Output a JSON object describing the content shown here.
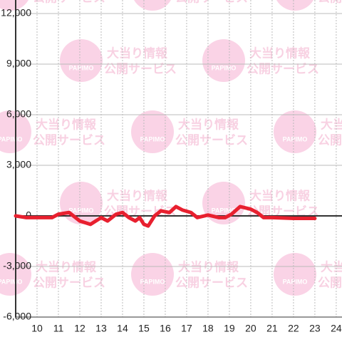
{
  "chart_data": {
    "type": "line",
    "watermark": {
      "title": "大当り情報",
      "subtitle": "公開サービス",
      "logo": "PAPIMO"
    },
    "x": [
      9,
      9.5,
      10,
      10.7,
      11,
      11.5,
      12,
      12.5,
      13,
      13.3,
      13.7,
      14,
      14.3,
      14.6,
      14.8,
      15,
      15.2,
      15.5,
      15.8,
      16.2,
      16.5,
      16.8,
      17.2,
      17.5,
      18,
      18.5,
      18.8,
      19.1,
      19.5,
      20,
      20.3,
      20.6,
      21,
      22,
      23
    ],
    "values": [
      0,
      -100,
      -100,
      -100,
      100,
      200,
      -300,
      -500,
      -100,
      -300,
      100,
      200,
      -100,
      -300,
      -100,
      -500,
      -600,
      0,
      300,
      200,
      550,
      350,
      200,
      -100,
      50,
      -100,
      -100,
      100,
      550,
      400,
      200,
      -100,
      -100,
      -150,
      -150
    ],
    "color": "#e8202f",
    "xlim": [
      9,
      24.27
    ],
    "xticks": [
      10,
      11,
      12,
      13,
      14,
      15,
      16,
      17,
      18,
      19,
      20,
      21,
      22,
      23,
      24
    ],
    "ylim": [
      -6000,
      12000
    ],
    "yticks": [
      {
        "value": -6000,
        "label": "-6,000"
      },
      {
        "value": -3000,
        "label": "-3,000"
      },
      0,
      {
        "value": 3000,
        "label": "3,000"
      },
      {
        "value": 6000,
        "label": "6,000"
      },
      {
        "value": 9000,
        "label": "9,000"
      },
      {
        "value": 12000,
        "label": "12,000"
      }
    ],
    "grid": true
  }
}
